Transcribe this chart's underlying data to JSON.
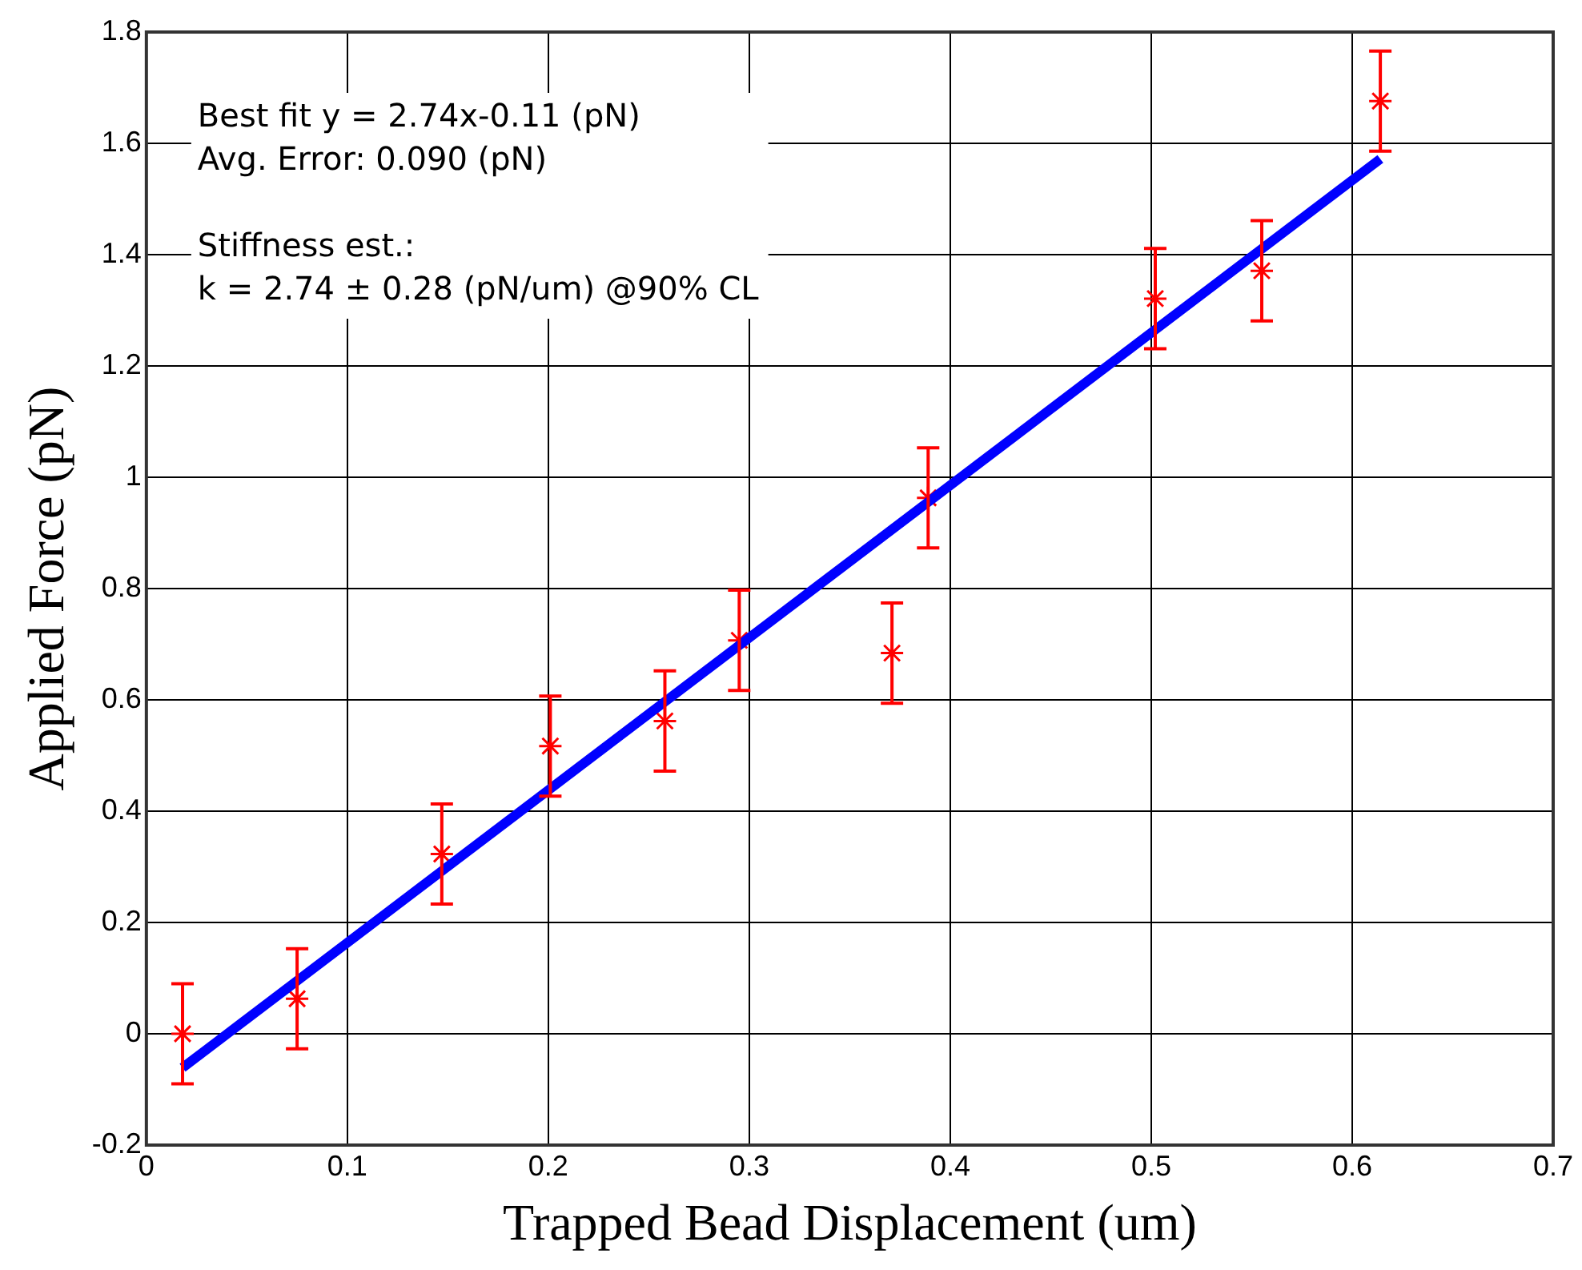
{
  "chart_data": {
    "type": "scatter",
    "xlabel": "Trapped Bead Displacement (um)",
    "ylabel": "Applied Force (pN)",
    "xlim": [
      0,
      0.7
    ],
    "xticks": [
      0,
      0.1,
      0.2,
      0.3,
      0.4,
      0.5,
      0.6,
      0.7
    ],
    "ylim": [
      -0.2,
      1.8
    ],
    "yticks": [
      -0.2,
      0,
      0.2,
      0.4,
      0.6,
      0.8,
      1,
      1.2,
      1.4,
      1.6,
      1.8
    ],
    "grid": true,
    "legend": false,
    "annotations": [
      "Best fit y = 2.74x-0.11 (pN)\nAvg. Error: 0.090 (pN)",
      "Stiffness est.:\nk = 2.74 ± 0.28 (pN/um) @90% CL"
    ],
    "series": [
      {
        "type": "line",
        "color": "#0000ff",
        "marker": "none",
        "line_style": "solid",
        "x": [
          0.018,
          0.614
        ],
        "values": [
          -0.061,
          1.572
        ]
      },
      {
        "type": "scatter",
        "color": "#ff0000",
        "marker": "cross",
        "x": [
          0.018,
          0.075,
          0.147,
          0.201,
          0.258,
          0.295,
          0.371,
          0.389,
          0.502,
          0.555,
          0.614
        ],
        "values": [
          0.0,
          0.063,
          0.323,
          0.517,
          0.562,
          0.707,
          0.684,
          0.963,
          1.321,
          1.371,
          1.676
        ],
        "errors": [
          0.09,
          0.09,
          0.09,
          0.09,
          0.09,
          0.09,
          0.09,
          0.09,
          0.09,
          0.09,
          0.09
        ]
      }
    ]
  }
}
